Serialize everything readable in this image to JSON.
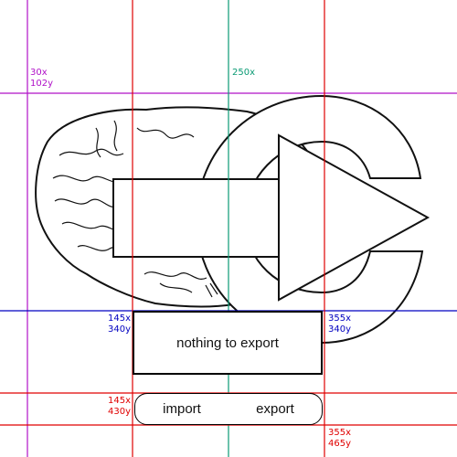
{
  "status": {
    "message": "nothing to export"
  },
  "buttons": {
    "import_label": "import",
    "export_label": "export"
  },
  "guides": {
    "v30": {
      "text": "30x\n102y",
      "color": "#b012c8"
    },
    "v250": {
      "text": "250x",
      "color": "#0a9a74"
    },
    "tl145": {
      "text": "145x\n340y",
      "color": "#0000c0"
    },
    "tr355": {
      "text": "355x\n340y",
      "color": "#0000c0"
    },
    "bl145": {
      "text": "145x\n430y",
      "color": "#e00000"
    },
    "br355": {
      "text": "355x\n465y",
      "color": "#e00000"
    }
  },
  "icons": {
    "hero": "brain-with-export-arrow-icon"
  }
}
